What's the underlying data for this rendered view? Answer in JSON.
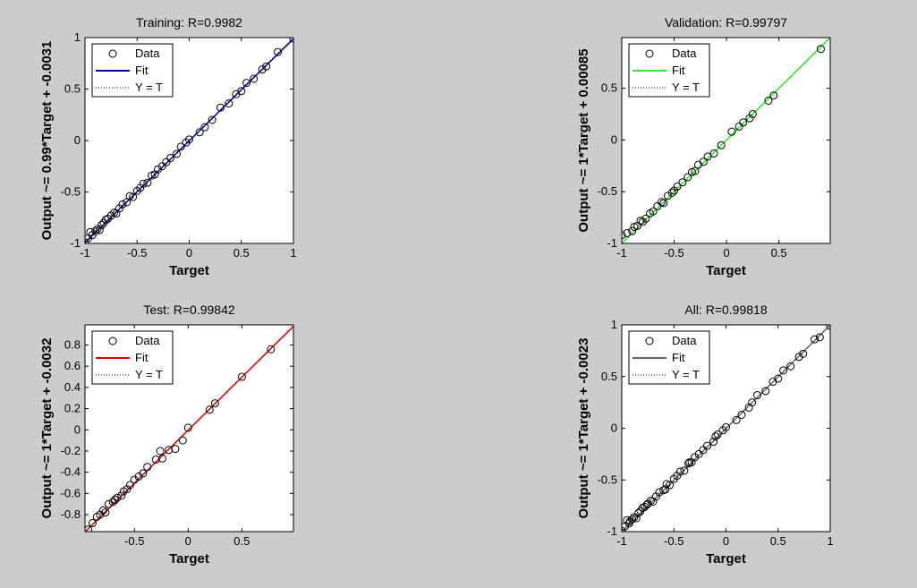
{
  "chart_data": [
    {
      "type": "scatter",
      "title": "Training: R=0.9982",
      "x_label": "Target",
      "y_label": "Output ~= 0.99*Target + -0.0031",
      "xlim": [
        -1,
        1
      ],
      "ylim": [
        -1,
        1
      ],
      "xticks": [
        -1,
        -0.5,
        0,
        0.5,
        1
      ],
      "yticks": [
        -1,
        -0.5,
        0,
        0.5,
        1
      ],
      "legend": "upper left",
      "series": [
        {
          "name": "Data",
          "color": "#000000",
          "marker": "circle",
          "x": [
            -1,
            -0.97,
            -0.95,
            -0.93,
            -0.9,
            -0.88,
            -0.86,
            -0.84,
            -0.82,
            -0.8,
            -0.78,
            -0.75,
            -0.72,
            -0.7,
            -0.67,
            -0.64,
            -0.6,
            -0.57,
            -0.54,
            -0.5,
            -0.47,
            -0.44,
            -0.4,
            -0.36,
            -0.33,
            -0.3,
            -0.26,
            -0.22,
            -0.18,
            -0.12,
            -0.08,
            -0.03,
            0,
            0.1,
            0.15,
            0.22,
            0.3,
            0.38,
            0.45,
            0.5,
            0.55,
            0.62,
            0.7,
            0.74,
            0.85,
            1
          ],
          "values": [
            -0.99,
            -0.95,
            -0.89,
            -0.92,
            -0.88,
            -0.86,
            -0.87,
            -0.82,
            -0.8,
            -0.77,
            -0.76,
            -0.73,
            -0.7,
            -0.71,
            -0.66,
            -0.62,
            -0.6,
            -0.54,
            -0.55,
            -0.49,
            -0.46,
            -0.42,
            -0.41,
            -0.34,
            -0.33,
            -0.28,
            -0.25,
            -0.21,
            -0.17,
            -0.13,
            -0.06,
            -0.02,
            0.01,
            0.08,
            0.13,
            0.2,
            0.32,
            0.36,
            0.45,
            0.48,
            0.56,
            0.6,
            0.69,
            0.72,
            0.86,
            0.99
          ]
        },
        {
          "name": "Fit",
          "color": "#0000aa",
          "style": "solid",
          "x": [
            -1,
            1
          ],
          "values": [
            -0.9931,
            0.9869
          ]
        },
        {
          "name": "Y = T",
          "color": "#000000",
          "style": "dotted",
          "x": [
            -1,
            1
          ],
          "values": [
            -1,
            1
          ]
        }
      ]
    },
    {
      "type": "scatter",
      "title": "Validation: R=0.99797",
      "x_label": "Target",
      "y_label": "Output ~= 1*Target + 0.00085",
      "xlim": [
        -1,
        0.99
      ],
      "ylim": [
        -1,
        0.99
      ],
      "xticks": [
        -1,
        -0.5,
        0,
        0.5
      ],
      "yticks": [
        -1,
        -0.5,
        0,
        0.5
      ],
      "legend": "upper left",
      "series": [
        {
          "name": "Data",
          "color": "#000000",
          "marker": "circle",
          "x": [
            -1,
            -0.95,
            -0.9,
            -0.88,
            -0.85,
            -0.82,
            -0.8,
            -0.77,
            -0.73,
            -0.7,
            -0.66,
            -0.62,
            -0.6,
            -0.56,
            -0.52,
            -0.5,
            -0.47,
            -0.42,
            -0.37,
            -0.33,
            -0.3,
            -0.27,
            -0.22,
            -0.18,
            -0.12,
            -0.05,
            0.05,
            0.12,
            0.16,
            0.22,
            0.25,
            0.4,
            0.45,
            0.9
          ],
          "values": [
            -0.92,
            -0.9,
            -0.88,
            -0.84,
            -0.83,
            -0.78,
            -0.79,
            -0.76,
            -0.71,
            -0.69,
            -0.64,
            -0.6,
            -0.61,
            -0.54,
            -0.51,
            -0.49,
            -0.45,
            -0.41,
            -0.36,
            -0.31,
            -0.3,
            -0.24,
            -0.21,
            -0.16,
            -0.13,
            -0.05,
            0.08,
            0.13,
            0.17,
            0.21,
            0.25,
            0.38,
            0.43,
            0.88
          ]
        },
        {
          "name": "Fit",
          "color": "#22ee22",
          "style": "solid",
          "x": [
            -1,
            0.99
          ],
          "values": [
            -0.99915,
            0.99085
          ]
        },
        {
          "name": "Y = T",
          "color": "#000000",
          "style": "dotted",
          "x": [
            -1,
            0.99
          ],
          "values": [
            -1,
            0.99
          ]
        }
      ]
    },
    {
      "type": "scatter",
      "title": "Test: R=0.99842",
      "x_label": "Target",
      "y_label": "Output ~= 1*Target + -0.0032",
      "xlim": [
        -0.96,
        0.98
      ],
      "ylim": [
        -0.96,
        0.99
      ],
      "xticks": [
        -0.5,
        0,
        0.5
      ],
      "yticks": [
        -0.8,
        -0.6,
        -0.4,
        -0.2,
        0,
        0.2,
        0.4,
        0.6,
        0.8
      ],
      "legend": "upper left",
      "series": [
        {
          "name": "Data",
          "color": "#000000",
          "marker": "circle",
          "x": [
            -0.93,
            -0.89,
            -0.85,
            -0.82,
            -0.79,
            -0.77,
            -0.74,
            -0.7,
            -0.68,
            -0.66,
            -0.62,
            -0.6,
            -0.57,
            -0.54,
            -0.5,
            -0.46,
            -0.42,
            -0.38,
            -0.3,
            -0.26,
            -0.24,
            -0.18,
            -0.12,
            -0.05,
            0,
            0.2,
            0.25,
            0.5,
            0.77
          ],
          "values": [
            -0.94,
            -0.88,
            -0.82,
            -0.8,
            -0.76,
            -0.78,
            -0.7,
            -0.68,
            -0.66,
            -0.64,
            -0.62,
            -0.58,
            -0.56,
            -0.52,
            -0.47,
            -0.44,
            -0.41,
            -0.35,
            -0.28,
            -0.2,
            -0.27,
            -0.19,
            -0.18,
            -0.1,
            0.02,
            0.19,
            0.25,
            0.5,
            0.76
          ]
        },
        {
          "name": "Fit",
          "color": "#dd0000",
          "style": "solid",
          "x": [
            -0.96,
            0.98
          ],
          "values": [
            -0.9632,
            0.9768
          ]
        },
        {
          "name": "Y = T",
          "color": "#000000",
          "style": "dotted",
          "x": [
            -0.96,
            0.98
          ],
          "values": [
            -0.96,
            0.98
          ]
        }
      ]
    },
    {
      "type": "scatter",
      "title": "All: R=0.99818",
      "x_label": "Target",
      "y_label": "Output ~= 1*Target + -0.0023",
      "xlim": [
        -1,
        1
      ],
      "ylim": [
        -1,
        1
      ],
      "xticks": [
        -1,
        -0.5,
        0,
        0.5,
        1
      ],
      "yticks": [
        -1,
        -0.5,
        0,
        0.5,
        1
      ],
      "legend": "upper left",
      "series": [
        {
          "name": "Data",
          "color": "#000000",
          "marker": "circle",
          "x": [
            -1,
            -0.97,
            -0.95,
            -0.93,
            -0.9,
            -0.88,
            -0.86,
            -0.84,
            -0.82,
            -0.8,
            -0.78,
            -0.75,
            -0.72,
            -0.7,
            -0.67,
            -0.64,
            -0.6,
            -0.57,
            -0.54,
            -0.5,
            -0.47,
            -0.44,
            -0.4,
            -0.36,
            -0.33,
            -0.3,
            -0.26,
            -0.22,
            -0.18,
            -0.12,
            -0.08,
            -0.03,
            0,
            0.1,
            0.15,
            0.22,
            0.3,
            0.38,
            0.45,
            0.5,
            0.55,
            0.62,
            0.7,
            0.74,
            0.85,
            1,
            -0.92,
            -0.76,
            -0.58,
            -0.35,
            -0.1,
            0.25,
            0.9
          ],
          "values": [
            -0.99,
            -0.95,
            -0.89,
            -0.92,
            -0.88,
            -0.86,
            -0.87,
            -0.82,
            -0.8,
            -0.77,
            -0.76,
            -0.73,
            -0.7,
            -0.71,
            -0.66,
            -0.62,
            -0.6,
            -0.54,
            -0.55,
            -0.49,
            -0.46,
            -0.42,
            -0.41,
            -0.34,
            -0.33,
            -0.28,
            -0.25,
            -0.21,
            -0.17,
            -0.13,
            -0.06,
            -0.02,
            0.01,
            0.08,
            0.13,
            0.2,
            0.32,
            0.36,
            0.45,
            0.48,
            0.56,
            0.6,
            0.69,
            0.72,
            0.86,
            0.99,
            -0.9,
            -0.74,
            -0.59,
            -0.33,
            -0.08,
            0.25,
            0.88
          ]
        },
        {
          "name": "Fit",
          "color": "#666666",
          "style": "solid",
          "x": [
            -1,
            1
          ],
          "values": [
            -1.0023,
            0.9977
          ]
        },
        {
          "name": "Y = T",
          "color": "#000000",
          "style": "dotted",
          "x": [
            -1,
            1
          ],
          "values": [
            -1,
            1
          ]
        }
      ]
    }
  ]
}
